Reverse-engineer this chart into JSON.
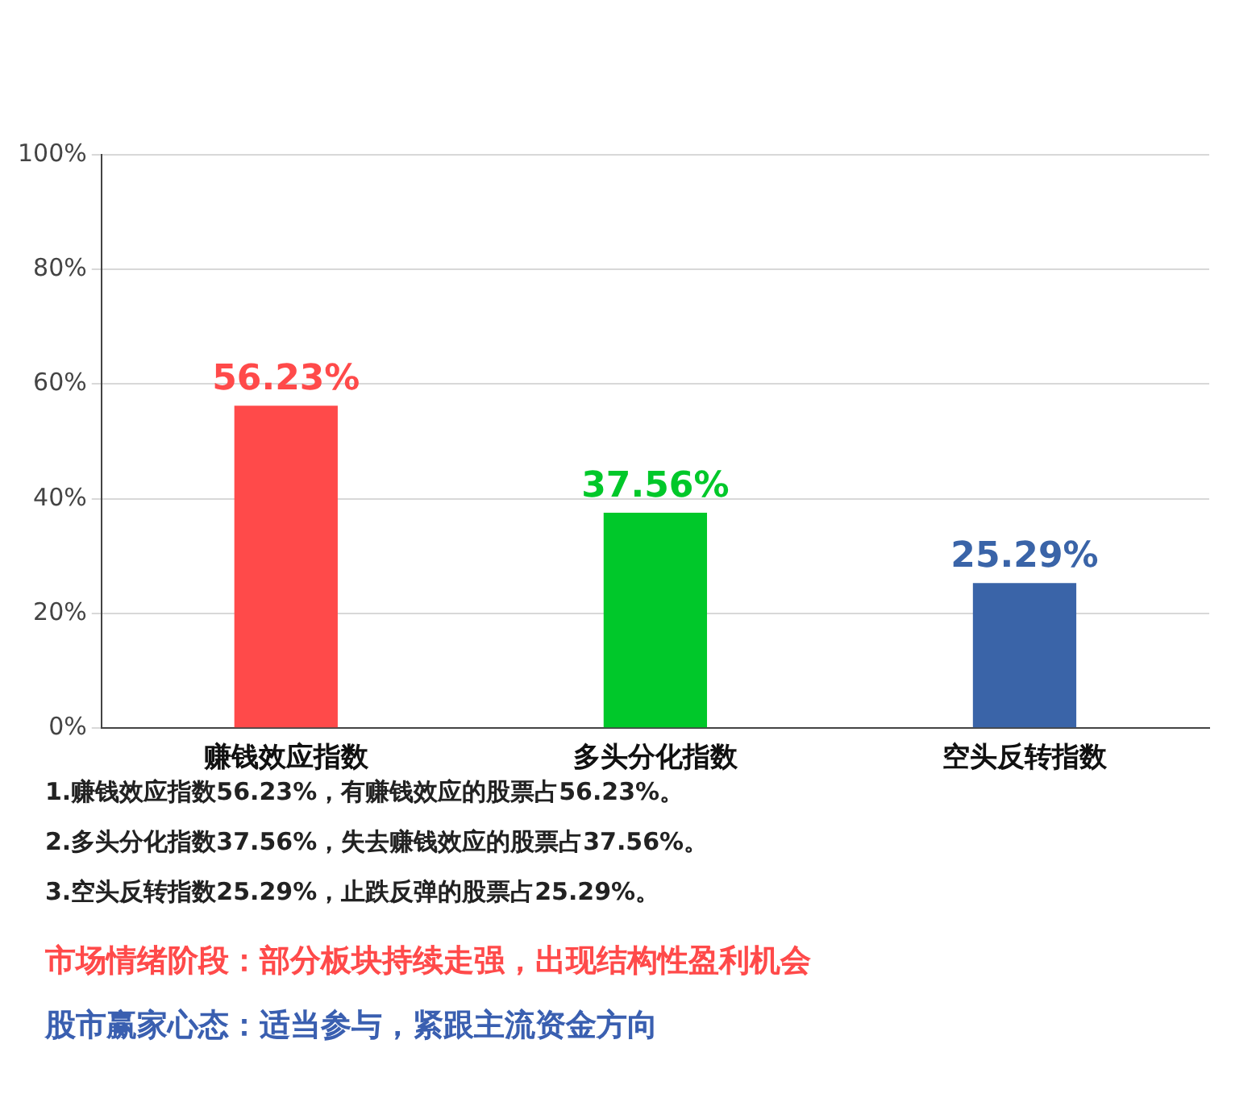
{
  "chart_data": {
    "type": "bar",
    "categories": [
      "赚钱效应指数",
      "多头分化指数",
      "空头反转指数"
    ],
    "values": [
      56.23,
      37.56,
      25.29
    ],
    "colors": [
      "#ff4a4a",
      "#00c82a",
      "#3a64a8"
    ],
    "value_labels": [
      "56.23%",
      "37.56%",
      "25.29%"
    ],
    "ylim": [
      0,
      100
    ],
    "yticks": [
      {
        "value": 0,
        "label": "0%"
      },
      {
        "value": 20,
        "label": "20%"
      },
      {
        "value": 40,
        "label": "40%"
      },
      {
        "value": 60,
        "label": "60%"
      },
      {
        "value": 80,
        "label": "80%"
      },
      {
        "value": 100,
        "label": "100%"
      }
    ],
    "grid": "y",
    "annotations": [
      "1.赚钱效应指数56.23%，有赚钱效应的股票占56.23%。",
      "2.多头分化指数37.56%，失去赚钱效应的股票占37.56%。",
      "3.空头反转指数25.29%，止跌反弹的股票占25.29%。",
      "市场情绪阶段：部分板块持续走强，出现结构性盈利机会",
      "股市赢家心态：适当参与，紧跟主流资金方向"
    ]
  }
}
